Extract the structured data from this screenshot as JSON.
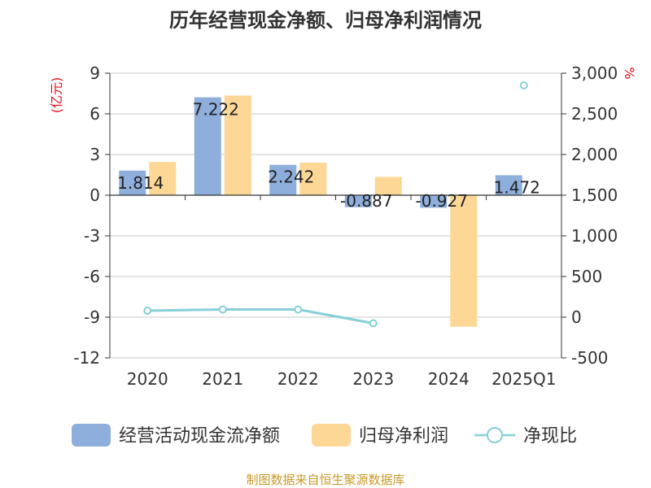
{
  "chart_data": {
    "type": "bar",
    "title": "历年经营现金净额、归母净利润情况",
    "left_unit": "(亿元)",
    "right_unit": "%",
    "categories": [
      "2020",
      "2021",
      "2022",
      "2023",
      "2024",
      "2025Q1"
    ],
    "left_axis": {
      "min": -12,
      "max": 9,
      "ticks": [
        9,
        6,
        3,
        0,
        -3,
        -6,
        -9,
        -12
      ]
    },
    "right_axis": {
      "min": -500,
      "max": 3000,
      "ticks": [
        "3,000",
        "2,500",
        "2,000",
        "1,500",
        "1,000",
        "500",
        "0",
        "-500"
      ]
    },
    "grid": true,
    "legend_position": "bottom",
    "series": [
      {
        "name": "经营活动现金流净额",
        "type": "bar",
        "axis": "left",
        "color": "#8eaedb",
        "values": [
          1.814,
          7.222,
          2.242,
          -0.887,
          -0.927,
          1.472
        ],
        "labels": [
          "1.814",
          "7.222",
          "2.242",
          "-0.887",
          "-0.927",
          "1.472"
        ]
      },
      {
        "name": "归母净利润",
        "type": "bar",
        "axis": "left",
        "color": "#fdd796",
        "values": [
          2.45,
          7.35,
          2.4,
          1.35,
          -9.7,
          0
        ]
      },
      {
        "name": "净现比",
        "type": "line",
        "axis": "right",
        "color": "#87cfd8",
        "values": [
          80,
          95,
          95,
          -75,
          null,
          2850
        ]
      }
    ]
  },
  "source_text": "制图数据来自恒生聚源数据库"
}
